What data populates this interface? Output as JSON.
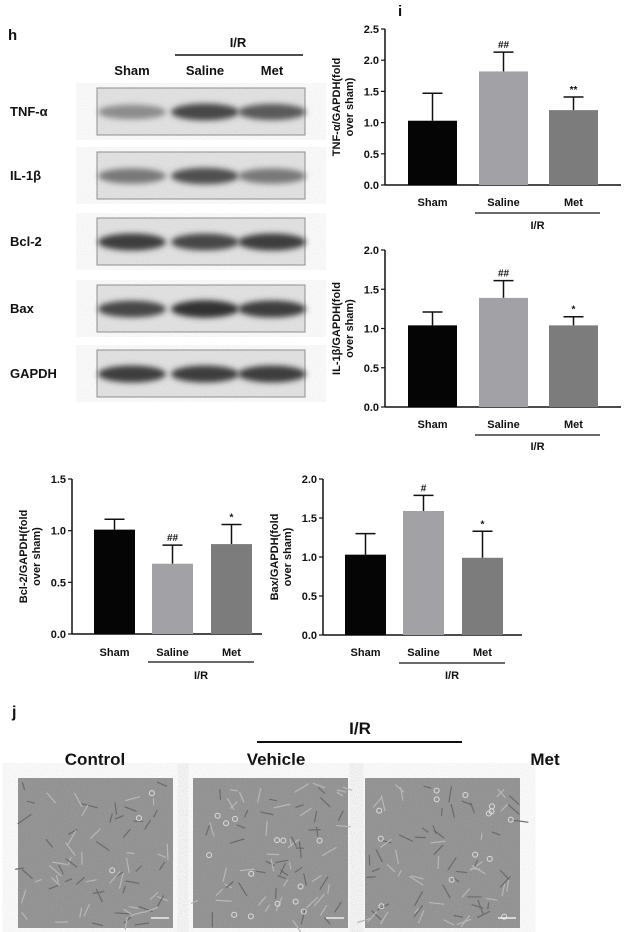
{
  "panels": {
    "h": "h",
    "i": "i",
    "j": "j"
  },
  "blot": {
    "group_label": "I/R",
    "columns": [
      "Sham",
      "Saline",
      "Met"
    ],
    "rows": [
      "TNF-α",
      "IL-1β",
      "Bcl-2",
      "Bax",
      "GAPDH"
    ]
  },
  "micrographs": {
    "group_label": "I/R",
    "columns": [
      "Control",
      "Vehicle",
      "Met"
    ]
  },
  "colors": {
    "sham": "#050505",
    "saline": "#a2a2a6",
    "met": "#7c7c7c"
  },
  "chart_data": [
    {
      "type": "bar",
      "title": "",
      "ylabel": "TNF-α/GAPDH(fold over sham)",
      "xlabel": "",
      "group_label": "I/R",
      "categories": [
        "Sham",
        "Saline",
        "Met"
      ],
      "values": [
        1.03,
        1.82,
        1.2
      ],
      "error_upper": [
        1.47,
        2.13,
        1.41
      ],
      "annotations": [
        "",
        "##",
        "**"
      ],
      "ylim": [
        0,
        2.5
      ],
      "yticks": [
        "0.0",
        "0.5",
        "1.0",
        "1.5",
        "2.0",
        "2.5"
      ],
      "grid": false
    },
    {
      "type": "bar",
      "title": "",
      "ylabel": "IL-1β/GAPDH(fold over sham)",
      "xlabel": "",
      "group_label": "I/R",
      "categories": [
        "Sham",
        "Saline",
        "Met"
      ],
      "values": [
        1.04,
        1.39,
        1.04
      ],
      "error_upper": [
        1.21,
        1.61,
        1.15
      ],
      "annotations": [
        "",
        "##",
        "*"
      ],
      "ylim": [
        0,
        2.0
      ],
      "yticks": [
        "0.0",
        "0.5",
        "1.0",
        "1.5",
        "2.0"
      ],
      "grid": false
    },
    {
      "type": "bar",
      "title": "",
      "ylabel": "Bcl-2/GAPDH(fold over sham)",
      "xlabel": "",
      "group_label": "I/R",
      "categories": [
        "Sham",
        "Saline",
        "Met"
      ],
      "values": [
        1.01,
        0.68,
        0.87
      ],
      "error_upper": [
        1.11,
        0.86,
        1.06
      ],
      "annotations": [
        "",
        "##",
        "*"
      ],
      "ylim": [
        0,
        1.5
      ],
      "yticks": [
        "0.0",
        "0.5",
        "1.0",
        "1.5"
      ],
      "grid": false
    },
    {
      "type": "bar",
      "title": "",
      "ylabel": "Bax/GAPDH(fold over sham)",
      "xlabel": "",
      "group_label": "I/R",
      "categories": [
        "Sham",
        "Saline",
        "Met"
      ],
      "values": [
        1.03,
        1.59,
        0.99
      ],
      "error_upper": [
        1.3,
        1.79,
        1.33
      ],
      "annotations": [
        "",
        "#",
        "*"
      ],
      "ylim": [
        0,
        2.0
      ],
      "yticks": [
        "0.0",
        "0.5",
        "1.0",
        "1.5",
        "2.0"
      ],
      "grid": false
    }
  ]
}
